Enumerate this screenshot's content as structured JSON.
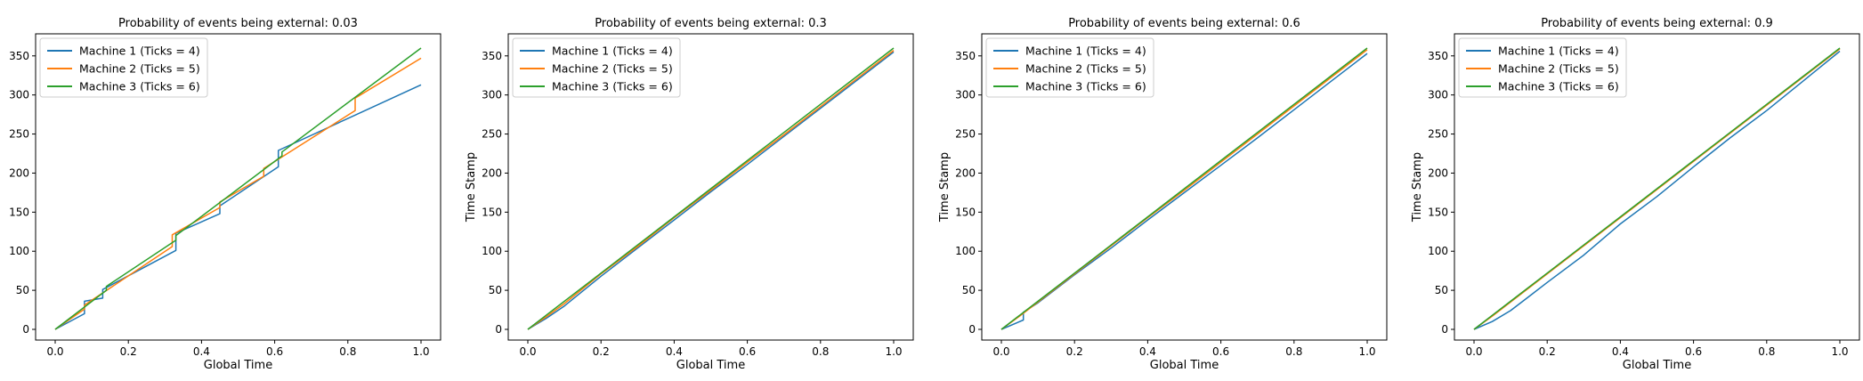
{
  "chart_data": [
    {
      "type": "line",
      "title": "Probability of events being external: 0.03",
      "xlabel": "Global Time",
      "ylabel": "",
      "xlim": [
        0,
        1
      ],
      "ylim": [
        0,
        360
      ],
      "xticks": [
        0.0,
        0.2,
        0.4,
        0.6,
        0.8,
        1.0
      ],
      "xtick_labels": [
        "0.0",
        "0.2",
        "0.4",
        "0.6",
        "0.8",
        "1.0"
      ],
      "yticks": [
        0,
        50,
        100,
        150,
        200,
        250,
        300,
        350
      ],
      "ytick_labels": [
        "0",
        "50",
        "100",
        "150",
        "200",
        "250",
        "300",
        "350"
      ],
      "legend": "top-left",
      "grid": false,
      "series": [
        {
          "name": "Machine 1 (Ticks = 4)",
          "color": "#1f77b4",
          "x": [
            0,
            0.08,
            0.08,
            0.13,
            0.13,
            0.33,
            0.33,
            0.45,
            0.45,
            0.61,
            0.61,
            1.0
          ],
          "y": [
            0,
            20,
            36,
            40,
            51,
            101,
            123,
            148,
            158,
            208,
            229,
            313
          ]
        },
        {
          "name": "Machine 2 (Ticks = 5)",
          "color": "#ff7f0e",
          "x": [
            0,
            0.08,
            0.08,
            0.32,
            0.32,
            0.45,
            0.45,
            0.57,
            0.57,
            0.82,
            0.82,
            1.0
          ],
          "y": [
            0,
            26,
            31,
            106,
            121,
            156,
            163,
            196,
            206,
            280,
            296,
            347
          ]
        },
        {
          "name": "Machine 3 (Ticks = 6)",
          "color": "#2ca02c",
          "x": [
            0,
            0.14,
            0.14,
            0.33,
            0.33,
            0.62,
            0.62,
            1.0
          ],
          "y": [
            0,
            50,
            55,
            114,
            120,
            222,
            227,
            360
          ]
        }
      ]
    },
    {
      "type": "line",
      "title": "Probability of events being external: 0.3",
      "xlabel": "Global Time",
      "ylabel": "Time Stamp",
      "xlim": [
        0,
        1
      ],
      "ylim": [
        0,
        360
      ],
      "xticks": [
        0.0,
        0.2,
        0.4,
        0.6,
        0.8,
        1.0
      ],
      "xtick_labels": [
        "0.0",
        "0.2",
        "0.4",
        "0.6",
        "0.8",
        "1.0"
      ],
      "yticks": [
        0,
        50,
        100,
        150,
        200,
        250,
        300,
        350
      ],
      "ytick_labels": [
        "0",
        "50",
        "100",
        "150",
        "200",
        "250",
        "300",
        "350"
      ],
      "legend": "top-left",
      "grid": false,
      "series": [
        {
          "name": "Machine 1 (Ticks = 4)",
          "color": "#1f77b4",
          "x": [
            0,
            0.05,
            0.1,
            0.2,
            0.3,
            0.4,
            0.5,
            0.6,
            0.7,
            0.8,
            0.9,
            1.0
          ],
          "y": [
            0,
            14,
            30,
            68,
            104,
            140,
            176,
            211,
            247,
            283,
            319,
            355
          ]
        },
        {
          "name": "Machine 2 (Ticks = 5)",
          "color": "#ff7f0e",
          "x": [
            0,
            0.05,
            0.1,
            0.2,
            0.3,
            0.4,
            0.5,
            0.6,
            0.7,
            0.8,
            0.9,
            1.0
          ],
          "y": [
            0,
            16,
            33,
            71,
            106,
            143,
            178,
            214,
            249,
            285,
            321,
            357
          ]
        },
        {
          "name": "Machine 3 (Ticks = 6)",
          "color": "#2ca02c",
          "x": [
            0,
            0.05,
            0.1,
            0.2,
            0.3,
            0.4,
            0.5,
            0.6,
            0.7,
            0.8,
            0.9,
            1.0
          ],
          "y": [
            0,
            18,
            36,
            72,
            108,
            144,
            180,
            216,
            252,
            288,
            324,
            360
          ]
        }
      ]
    },
    {
      "type": "line",
      "title": "Probability of events being external: 0.6",
      "xlabel": "Global Time",
      "ylabel": "Time Stamp",
      "xlim": [
        0,
        1
      ],
      "ylim": [
        0,
        360
      ],
      "xticks": [
        0.0,
        0.2,
        0.4,
        0.6,
        0.8,
        1.0
      ],
      "xtick_labels": [
        "0.0",
        "0.2",
        "0.4",
        "0.6",
        "0.8",
        "1.0"
      ],
      "yticks": [
        0,
        50,
        100,
        150,
        200,
        250,
        300,
        350
      ],
      "ytick_labels": [
        "0",
        "50",
        "100",
        "150",
        "200",
        "250",
        "300",
        "350"
      ],
      "legend": "top-left",
      "grid": false,
      "series": [
        {
          "name": "Machine 1 (Ticks = 4)",
          "color": "#1f77b4",
          "x": [
            0,
            0.06,
            0.06,
            0.1,
            0.2,
            0.3,
            0.4,
            0.5,
            0.6,
            0.7,
            0.8,
            0.9,
            1.0
          ],
          "y": [
            0,
            12,
            22,
            34,
            70,
            104,
            140,
            175,
            210,
            245,
            281,
            317,
            353
          ]
        },
        {
          "name": "Machine 2 (Ticks = 5)",
          "color": "#ff7f0e",
          "x": [
            0,
            0.05,
            0.1,
            0.2,
            0.3,
            0.4,
            0.5,
            0.6,
            0.7,
            0.8,
            0.9,
            1.0
          ],
          "y": [
            0,
            17,
            35,
            71,
            107,
            143,
            178,
            214,
            250,
            286,
            322,
            358
          ]
        },
        {
          "name": "Machine 3 (Ticks = 6)",
          "color": "#2ca02c",
          "x": [
            0,
            0.05,
            0.1,
            0.2,
            0.3,
            0.4,
            0.5,
            0.6,
            0.7,
            0.8,
            0.9,
            1.0
          ],
          "y": [
            0,
            18,
            36,
            72,
            108,
            144,
            180,
            216,
            252,
            288,
            324,
            360
          ]
        }
      ]
    },
    {
      "type": "line",
      "title": "Probability of events being external: 0.9",
      "xlabel": "Global Time",
      "ylabel": "Time Stamp",
      "xlim": [
        0,
        1
      ],
      "ylim": [
        0,
        360
      ],
      "xticks": [
        0.0,
        0.2,
        0.4,
        0.6,
        0.8,
        1.0
      ],
      "xtick_labels": [
        "0.0",
        "0.2",
        "0.4",
        "0.6",
        "0.8",
        "1.0"
      ],
      "yticks": [
        0,
        50,
        100,
        150,
        200,
        250,
        300,
        350
      ],
      "ytick_labels": [
        "0",
        "50",
        "100",
        "150",
        "200",
        "250",
        "300",
        "350"
      ],
      "legend": "top-left",
      "grid": false,
      "series": [
        {
          "name": "Machine 1 (Ticks = 4)",
          "color": "#1f77b4",
          "x": [
            0,
            0.05,
            0.1,
            0.15,
            0.2,
            0.3,
            0.4,
            0.5,
            0.6,
            0.7,
            0.8,
            0.9,
            1.0
          ],
          "y": [
            0,
            10,
            24,
            42,
            60,
            95,
            135,
            170,
            208,
            245,
            280,
            318,
            356
          ]
        },
        {
          "name": "Machine 2 (Ticks = 5)",
          "color": "#ff7f0e",
          "x": [
            0,
            0.05,
            0.1,
            0.2,
            0.3,
            0.4,
            0.5,
            0.6,
            0.7,
            0.8,
            0.9,
            1.0
          ],
          "y": [
            0,
            17,
            35,
            71,
            107,
            143,
            179,
            215,
            251,
            287,
            323,
            359
          ]
        },
        {
          "name": "Machine 3 (Ticks = 6)",
          "color": "#2ca02c",
          "x": [
            0,
            0.05,
            0.1,
            0.2,
            0.3,
            0.4,
            0.5,
            0.6,
            0.7,
            0.8,
            0.9,
            1.0
          ],
          "y": [
            0,
            18,
            36,
            72,
            108,
            144,
            180,
            216,
            252,
            288,
            324,
            360
          ]
        }
      ]
    }
  ]
}
